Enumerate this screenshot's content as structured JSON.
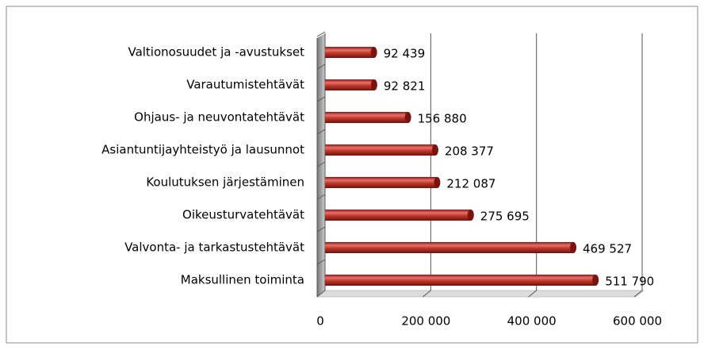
{
  "chart_data": {
    "type": "bar",
    "orientation": "horizontal",
    "categories": [
      "Valtionosuudet ja -avustukset",
      "Varautumistehtävät",
      "Ohjaus- ja neuvontatehtävät",
      "Asiantuntijayhteistyö ja lausunnot",
      "Koulutuksen järjestäminen",
      "Oikeusturvatehtävät",
      "Valvonta- ja tarkastustehtävät",
      "Maksullinen toiminta"
    ],
    "values": [
      92439,
      92821,
      156880,
      208377,
      212087,
      275695,
      469527,
      511790
    ],
    "value_labels": [
      "92 439",
      "92 821",
      "156 880",
      "208 377",
      "212 087",
      "275 695",
      "469 527",
      "511 790"
    ],
    "color": "#c0392b",
    "xlim": [
      0,
      600000
    ],
    "xticks": [
      0,
      {
        "value": 200000,
        "label": "200 000"
      },
      {
        "value": 400000,
        "label": "400 000"
      },
      {
        "value": 600000,
        "label": "600 000"
      }
    ],
    "grid": true
  }
}
